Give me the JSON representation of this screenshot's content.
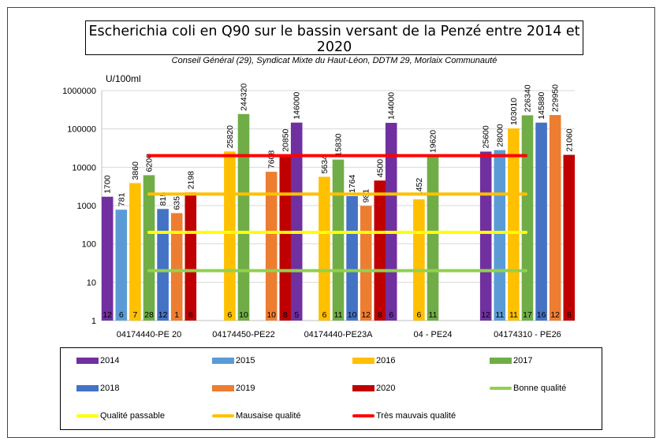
{
  "chart_data": {
    "type": "bar",
    "title": "Escherichia coli en Q90 sur le bassin versant de la Penzé entre 2014 et 2020",
    "subtitle": "Conseil Général (29), Syndicat Mixte du Haut-Léon, DDTM 29, Morlaix Communauté",
    "ylabel": "U/100ml",
    "yscale": "log",
    "ylim": [
      1,
      1000000
    ],
    "yticks": [
      "1",
      "10",
      "100",
      "1000",
      "10000",
      "100000",
      "1000000"
    ],
    "categories": [
      "04174440-PE 20",
      "04174450-PE22",
      "04174440-PE23A",
      "04 - PE24",
      "04174310 - PE26"
    ],
    "series": [
      {
        "name": "2014",
        "color": "#7030a0",
        "values": [
          1700,
          null,
          146000,
          144000,
          25600
        ],
        "counts": [
          "12",
          null,
          "5",
          "6",
          "12"
        ]
      },
      {
        "name": "2015",
        "color": "#5b9bd5",
        "values": [
          781,
          null,
          null,
          null,
          28000
        ],
        "counts": [
          "6",
          null,
          null,
          null,
          "11"
        ]
      },
      {
        "name": "2016",
        "color": "#ffc000",
        "values": [
          3860,
          25820,
          5634,
          1452,
          103010
        ],
        "counts": [
          "7",
          "6",
          "6",
          "6",
          "11"
        ]
      },
      {
        "name": "2017",
        "color": "#70ad47",
        "values": [
          6200,
          244320,
          15830,
          19620,
          226340
        ],
        "counts": [
          "28",
          "10",
          "11",
          "11",
          "17"
        ]
      },
      {
        "name": "2018",
        "color": "#4472c4",
        "values": [
          815,
          null,
          1764,
          null,
          145880
        ],
        "counts": [
          "12",
          null,
          "10",
          null,
          "16"
        ]
      },
      {
        "name": "2019",
        "color": "#ed7d31",
        "values": [
          635,
          7608,
          981,
          null,
          229950
        ],
        "counts": [
          "1",
          "10",
          "12",
          null,
          "12"
        ]
      },
      {
        "name": "2020",
        "color": "#c00000",
        "values": [
          2198,
          20850,
          4500,
          null,
          21060
        ],
        "counts": [
          "6",
          "8",
          "8",
          null,
          "8"
        ]
      }
    ],
    "thresholds": [
      {
        "name": "Bonne qualité",
        "value": 20,
        "color": "#92d050"
      },
      {
        "name": "Qualité passable",
        "value": 200,
        "color": "#ffff00"
      },
      {
        "name": "Mausaise qualité",
        "value": 2000,
        "color": "#ffc000"
      },
      {
        "name": "Très mauvais qualité",
        "value": 20000,
        "color": "#ff0000"
      }
    ],
    "legend_position": "bottom",
    "grid": true
  }
}
